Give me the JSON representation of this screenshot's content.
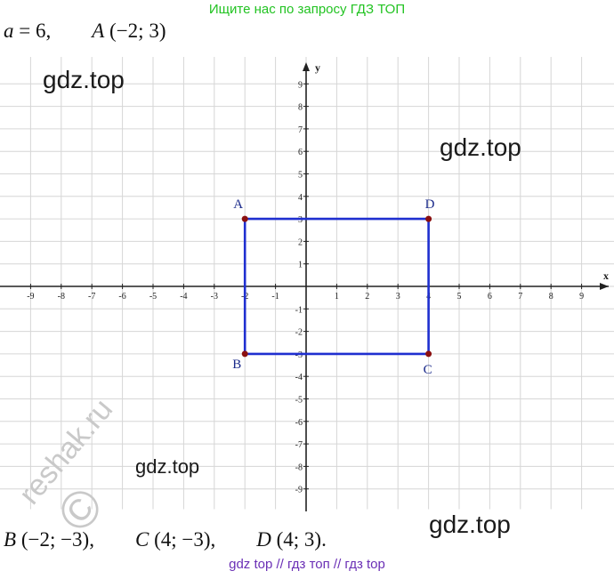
{
  "banner": "Ищите нас по запросу ГДЗ ТОП",
  "given": {
    "a_label": "a",
    "a_value": " = 6,",
    "point_label": "A",
    "point_coords": " (−2; 3)"
  },
  "watermarks": {
    "w1": "gdz.top",
    "w2": "gdz.top",
    "w3": "gdz.top",
    "w4": "gdz.top",
    "reshak": "reshak.ru",
    "copyright": "©"
  },
  "answer": {
    "b_label": "B",
    "b_coords": " (−2; −3),",
    "c_label": "C",
    "c_coords": " (4; −3),",
    "d_label": "D",
    "d_coords": " (4; 3)."
  },
  "footer": "gdz top  //  гдз топ  //  гдз top",
  "chart_data": {
    "type": "scatter",
    "xlabel": "x",
    "ylabel": "y",
    "xlim": [
      -9,
      9
    ],
    "ylim": [
      -9,
      9
    ],
    "x_ticks": [
      -9,
      -8,
      -7,
      -6,
      -5,
      -4,
      -3,
      -2,
      -1,
      1,
      2,
      3,
      4,
      5,
      6,
      7,
      8,
      9
    ],
    "y_ticks": [
      9,
      8,
      7,
      6,
      5,
      4,
      3,
      2,
      1,
      -1,
      -2,
      -3,
      -4,
      -5,
      -6,
      -7,
      -8,
      -9
    ],
    "grid": true,
    "rectangle_color": "#1f2fd0",
    "point_color": "#8b1010",
    "points": [
      {
        "name": "A",
        "x": -2,
        "y": 3
      },
      {
        "name": "D",
        "x": 4,
        "y": 3
      },
      {
        "name": "C",
        "x": 4,
        "y": -3
      },
      {
        "name": "B",
        "x": -2,
        "y": -3
      }
    ]
  }
}
